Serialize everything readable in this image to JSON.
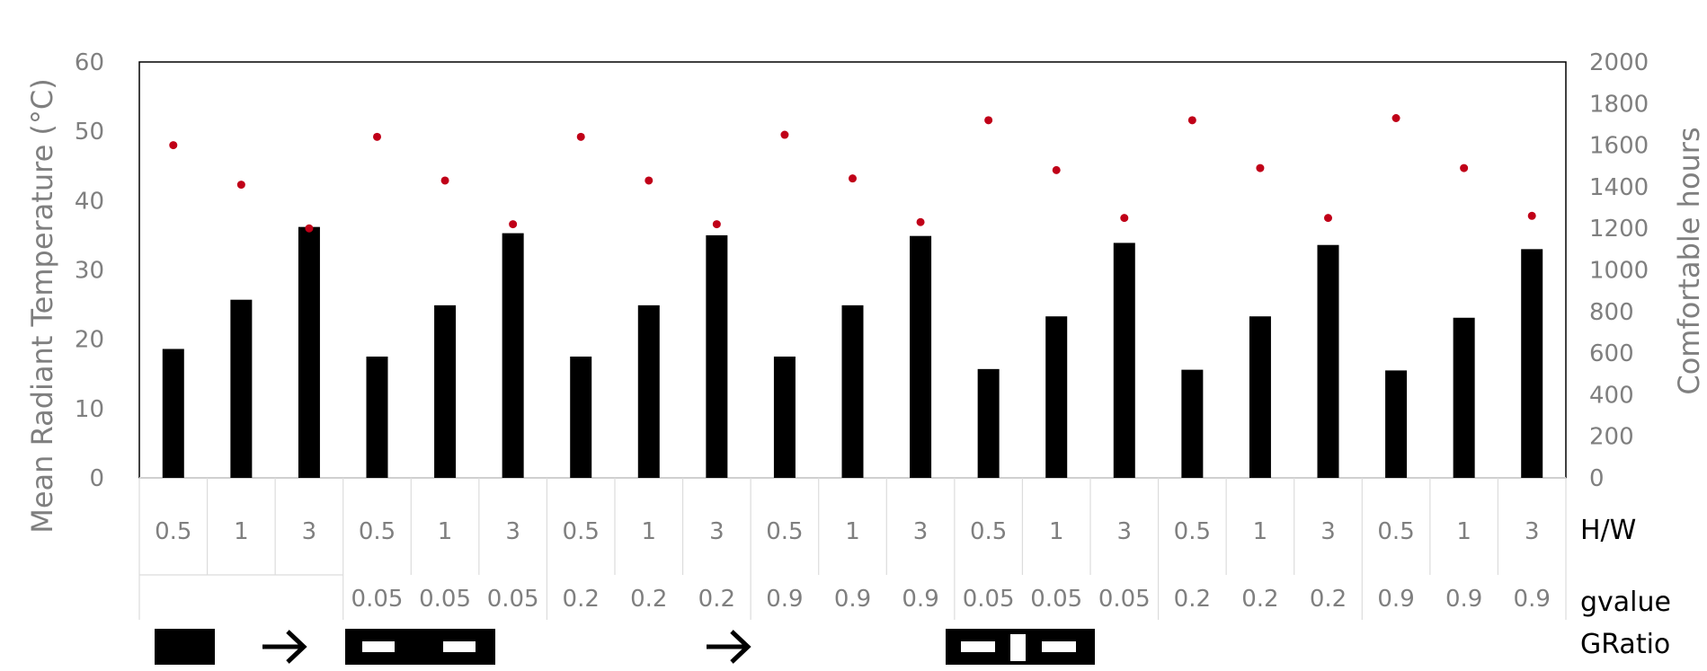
{
  "chart_data": {
    "type": "bar",
    "ylabel": "Mean Radiant Temperature (°C)",
    "y2label": "Comfortable hours",
    "ylim": [
      0,
      60
    ],
    "y2lim": [
      0,
      2000
    ],
    "yticks": [
      "0",
      "10",
      "20",
      "30",
      "40",
      "50",
      "60"
    ],
    "y2ticks": [
      "0",
      "200",
      "400",
      "600",
      "800",
      "1000",
      "1200",
      "1400",
      "1600",
      "1800",
      "2000"
    ],
    "grid": false,
    "row_labels": {
      "hw": "H/W",
      "gvalue": "gvalue",
      "gratio": "GRatio"
    },
    "categories_hw": [
      "0.5",
      "1",
      "3",
      "0.5",
      "1",
      "3",
      "0.5",
      "1",
      "3",
      "0.5",
      "1",
      "3",
      "0.5",
      "1",
      "3",
      "0.5",
      "1",
      "3",
      "0.5",
      "1",
      "3"
    ],
    "categories_gvalue": [
      "",
      "",
      "",
      "0.05",
      "0.05",
      "0.05",
      "0.2",
      "0.2",
      "0.2",
      "0.9",
      "0.9",
      "0.9",
      "0.05",
      "0.05",
      "0.05",
      "0.2",
      "0.2",
      "0.2",
      "0.9",
      "0.9",
      "0.9"
    ],
    "series": [
      {
        "axis": "left",
        "kind": "bar",
        "color": "#000000",
        "values": [
          18.6,
          25.7,
          36.2,
          17.5,
          24.9,
          35.3,
          17.5,
          24.9,
          35.0,
          17.5,
          24.9,
          34.9,
          15.7,
          23.3,
          33.9,
          15.6,
          23.3,
          33.6,
          15.5,
          23.1,
          33.0
        ]
      },
      {
        "axis": "right",
        "kind": "scatter",
        "color": "#c00018",
        "values": [
          1600,
          1410,
          1200,
          1640,
          1430,
          1220,
          1640,
          1430,
          1220,
          1650,
          1440,
          1230,
          1720,
          1480,
          1250,
          1720,
          1490,
          1250,
          1730,
          1490,
          1260
        ]
      }
    ],
    "icons": [
      "solid-block-icon",
      "arrow-right-icon",
      "block-two-windows-icon",
      "arrow-right-icon",
      "block-three-openings-icon"
    ]
  }
}
